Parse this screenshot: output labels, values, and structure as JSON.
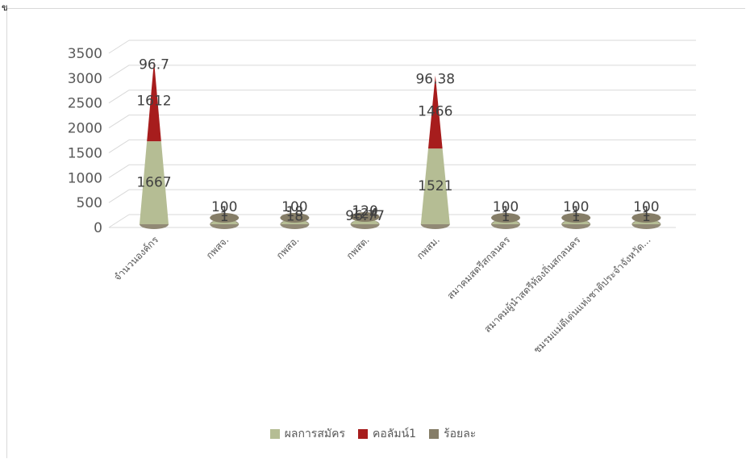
{
  "corner_mark": "ข",
  "chart_data": {
    "type": "bar",
    "variant": "3d-cone-stacked",
    "title": "",
    "xlabel": "",
    "ylabel": "",
    "ylim": [
      0,
      3500
    ],
    "yticks": [
      "0",
      "500",
      "1000",
      "1500",
      "2000",
      "2500",
      "3000",
      "3500"
    ],
    "grid": true,
    "legend_position": "bottom",
    "categories": [
      "จำนวนองค์กร",
      "กพสจ.",
      "กพสอ.",
      "กพสต.",
      "กพสม.",
      "สมาคมสตรีสกลนคร",
      "สมาคมผู้นำสตรีท้องถิ่นสกลนคร",
      "ชมรมแม่ดีเด่นแห่งชาติประจำจังหวัด..."
    ],
    "series": [
      {
        "name": "ผลการสมัคร",
        "color": "#b5bd94",
        "values": [
          1667,
          1,
          18,
          124,
          1521,
          1,
          1,
          1
        ],
        "labels": [
          "1667",
          "1",
          "18",
          "124",
          "1521",
          "1",
          "1",
          "1"
        ]
      },
      {
        "name": "คอลัมน์1",
        "color": "#a71d1d",
        "values": [
          1612,
          1,
          18,
          120,
          1466,
          1,
          1,
          1
        ],
        "labels": [
          "1612",
          "1",
          "18",
          "120",
          "1466",
          "1",
          "1",
          "1"
        ]
      },
      {
        "name": "ร้อยละ",
        "color": "#857d67",
        "values": [
          96.7,
          100,
          100,
          96.77,
          96.38,
          100,
          100,
          100
        ],
        "labels": [
          "96.7",
          "100",
          "100",
          "96.77",
          "96.38",
          "100",
          "100",
          "100"
        ]
      }
    ]
  }
}
